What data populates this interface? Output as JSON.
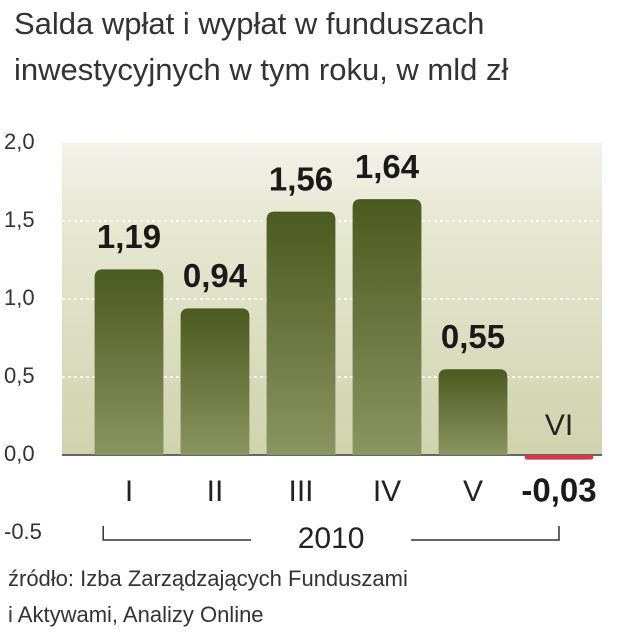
{
  "chart_data": {
    "type": "bar",
    "title": [
      "Salda wpłat i wypłat w funduszach",
      "inwestycyjnych w tym roku, w mld zł"
    ],
    "categories": [
      "I",
      "II",
      "III",
      "IV",
      "V",
      "VI"
    ],
    "values": [
      1.19,
      0.94,
      1.56,
      1.64,
      0.55,
      -0.03
    ],
    "value_labels": [
      "1,19",
      "0,94",
      "1,56",
      "1,64",
      "0,55",
      "-0,03"
    ],
    "color": "#55662a",
    "negative_color": "#d8374a",
    "ylim": [
      -0.5,
      2.0
    ],
    "yticks": [
      {
        "value": 2.0,
        "label": "2,0"
      },
      {
        "value": 1.5,
        "label": "1,5"
      },
      {
        "value": 1.0,
        "label": "1,0"
      },
      {
        "value": 0.5,
        "label": "0,5"
      },
      {
        "value": 0,
        "label": "0,0"
      },
      {
        "value": -0.5,
        "label": "-0.5"
      }
    ],
    "xlabel": "2010",
    "source": [
      "źródło: Izba Zarządzających Funduszami",
      "i Aktywami, Analizy Online"
    ]
  }
}
